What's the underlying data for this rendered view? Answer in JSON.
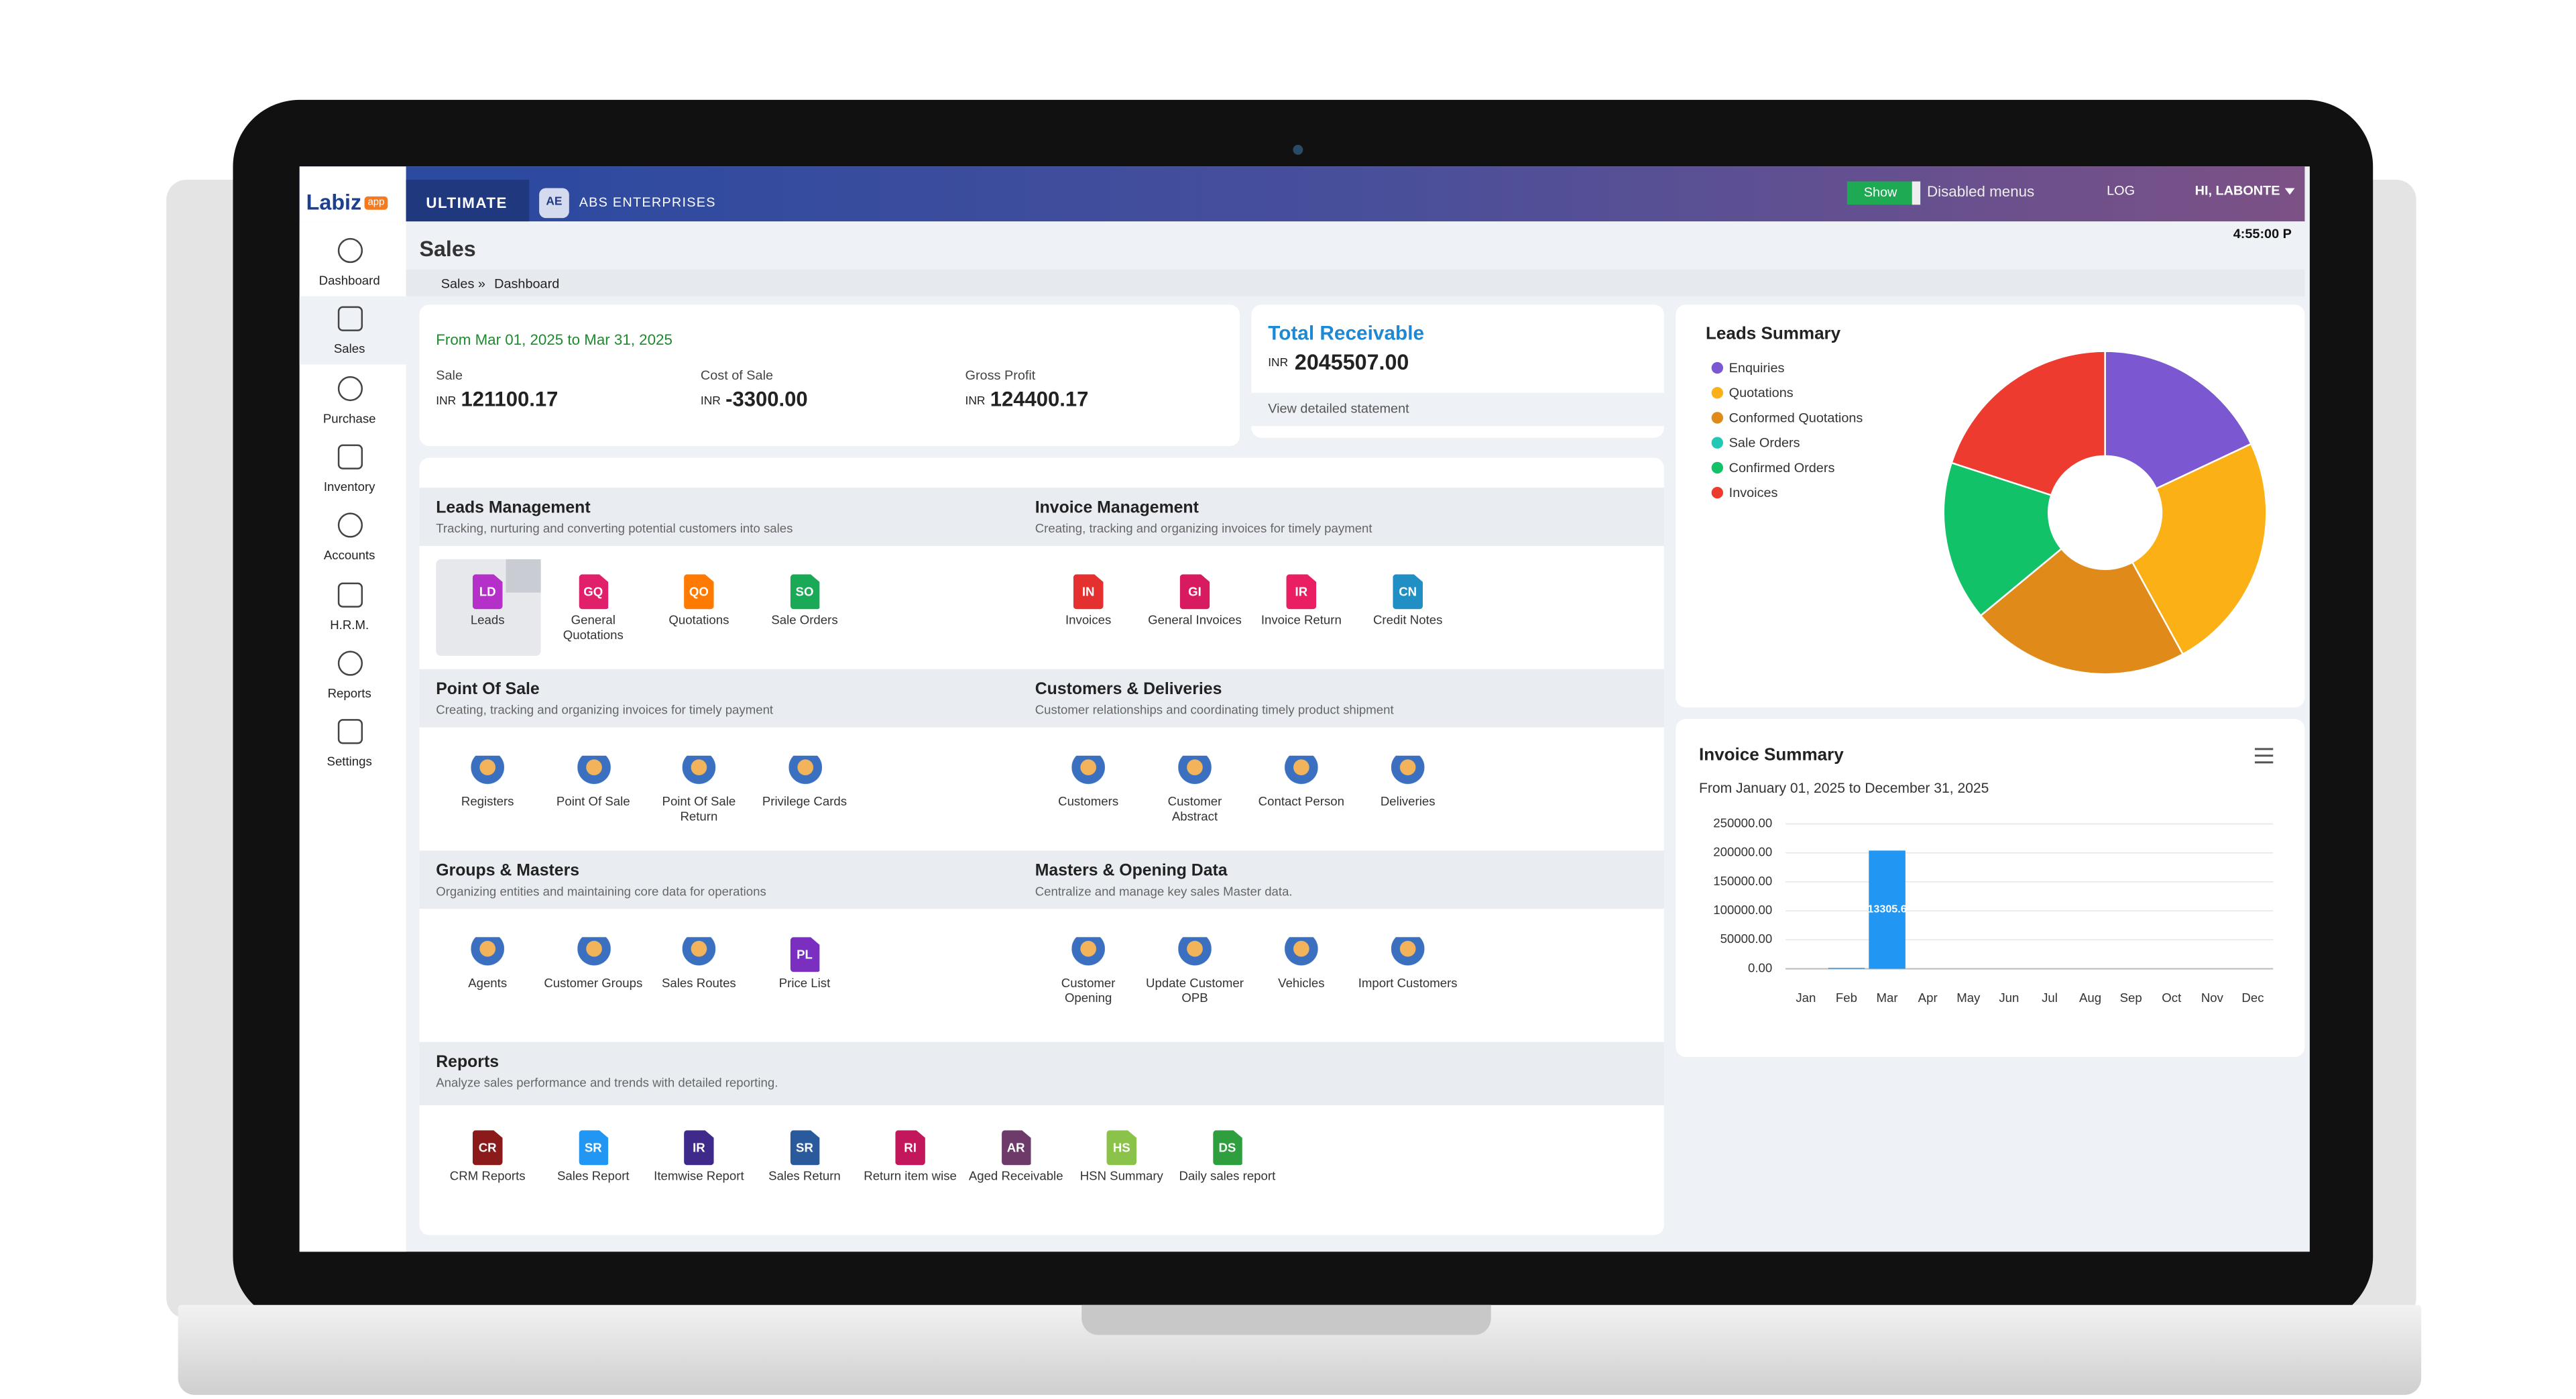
{
  "topbar": {
    "logo": "Labiz",
    "logo_badge": "app",
    "plan": "ULTIMATE",
    "company_badge": "AE",
    "company": "ABS ENTERPRISES",
    "toggle": "Show",
    "toggle_label": "Disabled menus",
    "log": "LOG",
    "user": "HI, LABONTE"
  },
  "sidebar": [
    "Dashboard",
    "Sales",
    "Purchase",
    "Inventory",
    "Accounts",
    "H.R.M.",
    "Reports",
    "Settings"
  ],
  "header": {
    "title": "Sales",
    "time": "4:55:00 P",
    "breadcrumb": [
      "Sales »",
      "Dashboard"
    ]
  },
  "sales_summary": {
    "period": "From Mar 01, 2025 to Mar 31, 2025",
    "metrics": [
      {
        "label": "Sale",
        "currency": "INR",
        "value": "121100.17"
      },
      {
        "label": "Cost of Sale",
        "currency": "INR",
        "value": "-3300.00"
      },
      {
        "label": "Gross Profit",
        "currency": "INR",
        "value": "124400.17"
      }
    ]
  },
  "receivable": {
    "title": "Total Receivable",
    "currency": "INR",
    "value": "2045507.00",
    "link": "View detailed statement"
  },
  "modules": [
    {
      "title": "Leads Management",
      "subtitle": "Tracking, nurturing and converting potential customers into sales",
      "items": [
        {
          "code": "LD",
          "label": "Leads",
          "color": "#b530c8"
        },
        {
          "code": "GQ",
          "label": "General Quotations",
          "color": "#e0206a"
        },
        {
          "code": "QO",
          "label": "Quotations",
          "color": "#ff7a00"
        },
        {
          "code": "SO",
          "label": "Sale Orders",
          "color": "#1aa957"
        }
      ]
    },
    {
      "title": "Invoice Management",
      "subtitle": "Creating, tracking and organizing invoices for timely payment",
      "items": [
        {
          "code": "IN",
          "label": "Invoices",
          "color": "#e53030"
        },
        {
          "code": "GI",
          "label": "General Invoices",
          "color": "#d81b60"
        },
        {
          "code": "IR",
          "label": "Invoice Return",
          "color": "#e91e63"
        },
        {
          "code": "CN",
          "label": "Credit Notes",
          "color": "#1f8fc4"
        }
      ]
    },
    {
      "title": "Point Of Sale",
      "subtitle": "Creating, tracking and organizing invoices for timely payment",
      "items": [
        {
          "label": "Registers"
        },
        {
          "label": "Point Of Sale"
        },
        {
          "label": "Point Of Sale Return"
        },
        {
          "label": "Privilege Cards"
        }
      ]
    },
    {
      "title": "Customers & Deliveries",
      "subtitle": "Customer relationships and coordinating timely product shipment",
      "items": [
        {
          "label": "Customers"
        },
        {
          "label": "Customer Abstract"
        },
        {
          "label": "Contact Person"
        },
        {
          "label": "Deliveries"
        }
      ]
    },
    {
      "title": "Groups & Masters",
      "subtitle": "Organizing entities and maintaining core data for operations",
      "items": [
        {
          "label": "Agents"
        },
        {
          "label": "Customer Groups"
        },
        {
          "label": "Sales Routes"
        },
        {
          "code": "PL",
          "label": "Price List",
          "color": "#7b2fc0"
        }
      ]
    },
    {
      "title": "Masters & Opening Data",
      "subtitle": "Centralize and manage key sales Master data.",
      "items": [
        {
          "label": "Customer Opening"
        },
        {
          "label": "Update Customer OPB"
        },
        {
          "label": "Vehicles"
        },
        {
          "label": "Import Customers"
        }
      ]
    },
    {
      "title": "Reports",
      "subtitle": "Analyze sales performance and trends with detailed reporting.",
      "items": [
        {
          "code": "CR",
          "label": "CRM Reports",
          "color": "#8b1a1a"
        },
        {
          "code": "SR",
          "label": "Sales Report",
          "color": "#2196f3"
        },
        {
          "code": "IR",
          "label": "Itemwise Report",
          "color": "#3f2a8c"
        },
        {
          "code": "SR",
          "label": "Sales Return",
          "color": "#2a5a9c"
        },
        {
          "code": "RI",
          "label": "Return item wise",
          "color": "#c2185b"
        },
        {
          "code": "AR",
          "label": "Aged Receivable",
          "color": "#6d3a6a"
        },
        {
          "code": "HS",
          "label": "HSN Summary",
          "color": "#8bc34a"
        },
        {
          "code": "DS",
          "label": "Daily sales report",
          "color": "#2e9e3e"
        }
      ]
    }
  ],
  "chart_data": [
    {
      "type": "pie",
      "title": "Leads Summary",
      "categories": [
        "Enquiries",
        "Quotations",
        "Conformed Quotations",
        "Sale Orders",
        "Confirmed Orders",
        "Invoices"
      ],
      "values": [
        18,
        24,
        22,
        0,
        16,
        20
      ],
      "colors": [
        "#7b57d1",
        "#fbb016",
        "#e08a1a",
        "#20c9b5",
        "#12c268",
        "#ee3b2f"
      ]
    },
    {
      "type": "bar",
      "title": "Invoice Summary",
      "subtitle": "From January 01, 2025 to December 31, 2025",
      "categories": [
        "Jan",
        "Feb",
        "Mar",
        "Apr",
        "May",
        "Jun",
        "Jul",
        "Aug",
        "Sep",
        "Oct",
        "Nov",
        "Dec"
      ],
      "values": [
        0,
        1500,
        204000,
        0,
        0,
        0,
        0,
        0,
        0,
        0,
        0,
        0
      ],
      "color": "#2196f3",
      "annotation": "13305.6",
      "ylim": [
        0,
        250000
      ],
      "yticks": [
        {
          "value": 0,
          "label": "0.00"
        },
        {
          "value": 50000,
          "label": "50000.00"
        },
        {
          "value": 100000,
          "label": "100000.00"
        },
        {
          "value": 150000,
          "label": "150000.00"
        },
        {
          "value": 200000,
          "label": "200000.00"
        },
        {
          "value": 250000,
          "label": "250000.00"
        }
      ],
      "grid": true
    }
  ]
}
